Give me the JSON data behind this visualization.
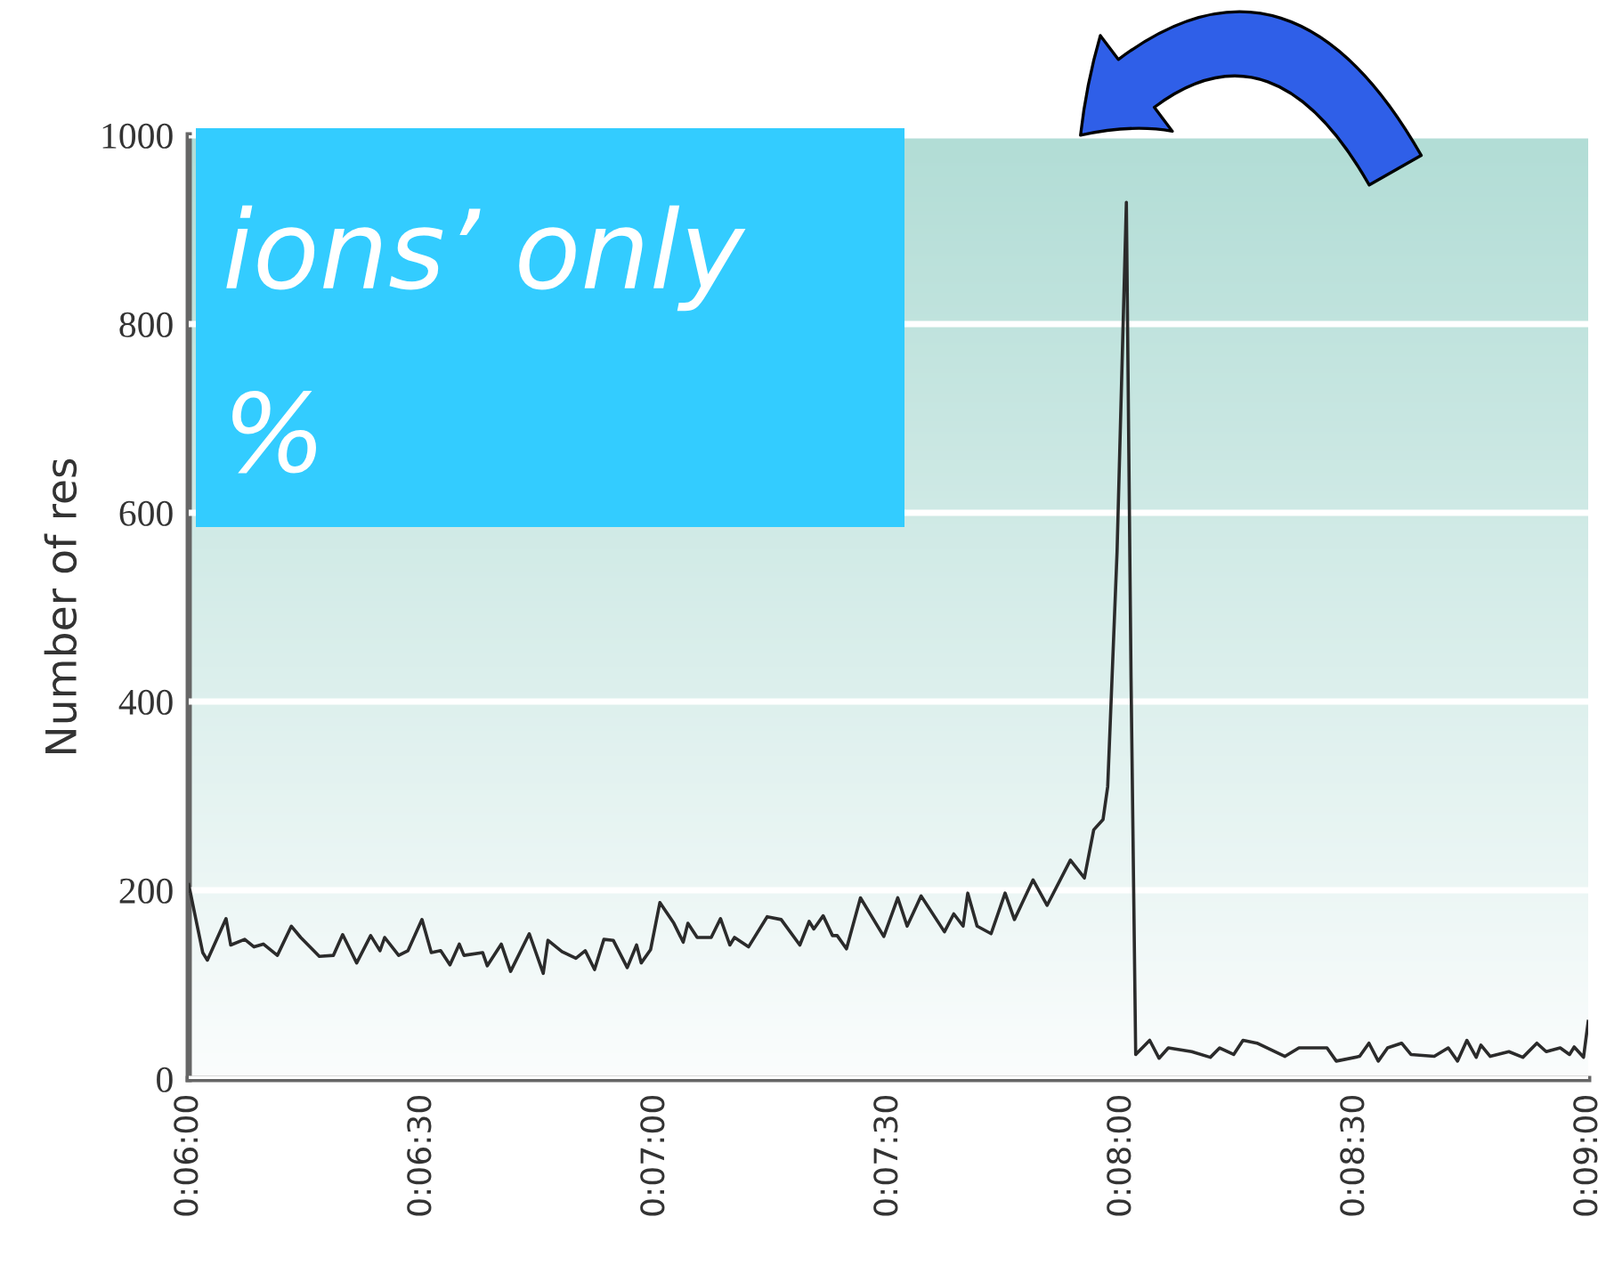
{
  "chart_data": {
    "type": "line",
    "ylabel": "Number of res",
    "x": [
      6.0,
      6.03,
      6.04,
      6.08,
      6.09,
      6.12,
      6.14,
      6.16,
      6.19,
      6.22,
      6.24,
      6.28,
      6.31,
      6.33,
      6.36,
      6.39,
      6.41,
      6.42,
      6.45,
      6.47,
      6.5,
      6.52,
      6.54,
      6.56,
      6.58,
      6.59,
      6.63,
      6.64,
      6.67,
      6.69,
      6.73,
      6.76,
      6.77,
      6.8,
      6.83,
      6.85,
      6.87,
      6.89,
      6.91,
      6.94,
      6.96,
      6.97,
      6.99,
      7.01,
      7.04,
      7.06,
      7.07,
      7.09,
      7.12,
      7.14,
      7.16,
      7.17,
      7.2,
      7.24,
      7.27,
      7.31,
      7.33,
      7.34,
      7.36,
      7.38,
      7.39,
      7.41,
      7.44,
      7.49,
      7.52,
      7.54,
      7.57,
      7.62,
      7.64,
      7.66,
      7.67,
      7.69,
      7.72,
      7.75,
      7.77,
      7.81,
      7.84,
      7.89,
      7.92,
      7.94,
      7.96,
      7.97,
      7.99,
      8.01,
      8.02,
      8.03,
      8.06,
      8.08,
      8.1,
      8.15,
      8.19,
      8.21,
      8.24,
      8.26,
      8.29,
      8.35,
      8.38,
      8.44,
      8.46,
      8.51,
      8.53,
      8.55,
      8.57,
      8.6,
      8.62,
      8.67,
      8.7,
      8.72,
      8.74,
      8.76,
      8.77,
      8.79,
      8.83,
      8.86,
      8.89,
      8.91,
      8.94,
      8.96,
      8.97,
      8.99,
      9.0
    ],
    "series": [
      {
        "color": "#2b2b2b",
        "values": [
          206,
          134,
          126,
          170,
          142,
          148,
          140,
          143,
          131,
          162,
          150,
          130,
          131,
          153,
          123,
          152,
          136,
          150,
          131,
          136,
          169,
          134,
          136,
          121,
          143,
          131,
          134,
          120,
          143,
          114,
          154,
          112,
          147,
          135,
          128,
          136,
          116,
          148,
          147,
          118,
          142,
          123,
          137,
          187,
          165,
          145,
          165,
          150,
          150,
          170,
          142,
          150,
          140,
          172,
          169,
          142,
          167,
          159,
          173,
          152,
          152,
          138,
          192,
          151,
          192,
          162,
          194,
          156,
          175,
          162,
          197,
          162,
          154,
          197,
          169,
          211,
          184,
          232,
          213,
          264,
          275,
          310,
          558,
          929,
          425,
          26,
          41,
          22,
          33,
          29,
          23,
          33,
          26,
          41,
          38,
          24,
          33,
          33,
          19,
          24,
          38,
          19,
          33,
          38,
          26,
          24,
          33,
          19,
          41,
          23,
          36,
          24,
          29,
          23,
          38,
          29,
          33,
          26,
          34,
          23,
          61
        ]
      }
    ],
    "xlim": [
      6,
      9
    ],
    "xticks": [
      {
        "value": 6,
        "label": "0:06:00"
      },
      {
        "value": 6.5,
        "label": "0:06:30"
      },
      {
        "value": 7,
        "label": "0:07:00"
      },
      {
        "value": 7.5,
        "label": "0:07:30"
      },
      {
        "value": 8,
        "label": "0:08:00"
      },
      {
        "value": 8.5,
        "label": "0:08:30"
      },
      {
        "value": 9,
        "label": "0:09:00"
      }
    ],
    "ylim": [
      0,
      1000
    ],
    "yticks": [
      0,
      200,
      400,
      600,
      800,
      1000
    ],
    "grid": "y",
    "marker": "none",
    "line_style": "solid",
    "legend": false,
    "annotations": [
      "ions’ only",
      "%"
    ]
  }
}
